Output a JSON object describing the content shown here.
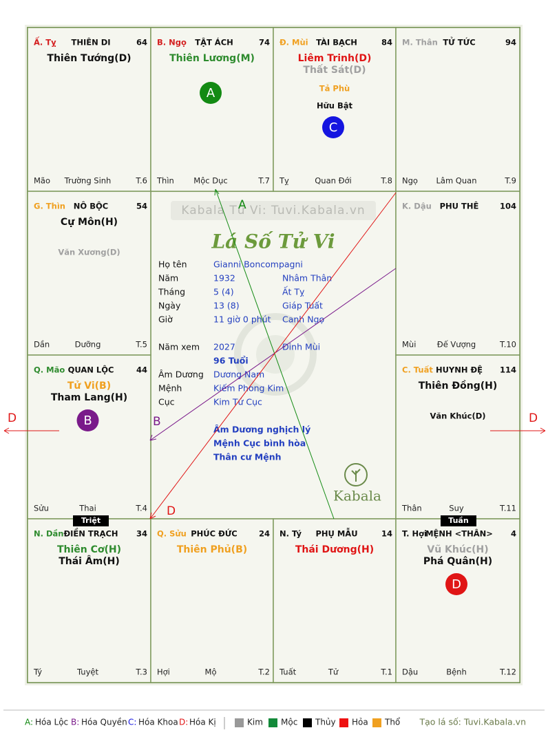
{
  "watermark": "Kabala Tử Vi: Tuvi.Kabala.vn",
  "title": "Lá Số Tử Vi",
  "logo": "Kabala",
  "cells": [
    {
      "label": "Ấ. Tỵ",
      "label_color": "#d42020",
      "name": "THIÊN DI",
      "number": 64,
      "stars": [
        {
          "text": "Thiên Tướng(D)",
          "color": "#111111"
        }
      ],
      "minor": [],
      "bottom": [
        "Mão",
        "Trường Sinh",
        "T.6"
      ]
    },
    {
      "label": "B. Ngọ",
      "label_color": "#d42020",
      "name": "TẬT ÁCH",
      "number": 74,
      "stars": [
        {
          "text": "Thiên Lương(M)",
          "color": "#2e8b2e"
        }
      ],
      "minor": [],
      "marker": {
        "text": "A",
        "color": "#138a13"
      },
      "bottom": [
        "Thìn",
        "Mộc Dục",
        "T.7"
      ]
    },
    {
      "label": "Đ. Mùi",
      "label_color": "#f0a020",
      "name": "TÀI BẠCH",
      "number": 84,
      "stars": [
        {
          "text": "Liêm Trinh(D)",
          "color": "#e01515"
        },
        {
          "text": "Thất Sát(D)",
          "color": "#a0a0a0"
        }
      ],
      "minor": [
        {
          "text": "Tả Phù",
          "color": "#f0a020"
        },
        {
          "text": "Hữu Bật",
          "color": "#111111"
        }
      ],
      "marker": {
        "text": "C",
        "color": "#1515e0"
      },
      "bottom": [
        "Tỵ",
        "Quan Đới",
        "T.8"
      ]
    },
    {
      "label": "M. Thân",
      "label_color": "#a0a0a0",
      "name": "TỬ TỨC",
      "number": 94,
      "stars": [],
      "minor": [],
      "bottom": [
        "Ngọ",
        "Lâm Quan",
        "T.9"
      ]
    },
    {
      "label": "G. Thìn",
      "label_color": "#f0a020",
      "name": "NÔ BỘC",
      "number": 54,
      "stars": [
        {
          "text": "Cự Môn(H)",
          "color": "#111111"
        }
      ],
      "minor": [
        {
          "text": "Văn Xương(D)",
          "color": "#a0a0a0"
        }
      ],
      "bottom": [
        "Dần",
        "Dưỡng",
        "T.5"
      ]
    },
    {
      "label": "K. Dậu",
      "label_color": "#a0a0a0",
      "name": "PHU THÊ",
      "number": 104,
      "stars": [],
      "minor": [],
      "bottom": [
        "Mùi",
        "Đế Vượng",
        "T.10"
      ]
    },
    {
      "label": "Q. Mão",
      "label_color": "#2e8b2e",
      "name": "QUAN LỘC",
      "number": 44,
      "stars": [
        {
          "text": "Tử Vi(B)",
          "color": "#f0a020"
        },
        {
          "text": "Tham Lang(H)",
          "color": "#111111"
        }
      ],
      "minor": [],
      "marker": {
        "text": "B",
        "color": "#7a1a8a"
      },
      "bottom": [
        "Sửu",
        "Thai",
        "T.4"
      ]
    },
    {
      "label": "C. Tuất",
      "label_color": "#f0a020",
      "name": "HUYNH ĐỆ",
      "number": 114,
      "stars": [
        {
          "text": "Thiên Đồng(H)",
          "color": "#111111"
        }
      ],
      "minor": [
        {
          "text": "Văn Khúc(D)",
          "color": "#111111"
        }
      ],
      "bottom": [
        "Thân",
        "Suy",
        "T.11"
      ]
    },
    {
      "label": "N. Dần",
      "label_color": "#2e8b2e",
      "name": "ĐIỀN TRẠCH",
      "number": 34,
      "stars": [
        {
          "text": "Thiên Cơ(H)",
          "color": "#2e8b2e"
        },
        {
          "text": "Thái Âm(H)",
          "color": "#111111"
        }
      ],
      "minor": [],
      "bottom": [
        "Tý",
        "Tuyệt",
        "T.3"
      ]
    },
    {
      "label": "Q. Sửu",
      "label_color": "#f0a020",
      "name": "PHÚC ĐỨC",
      "number": 24,
      "stars": [
        {
          "text": "Thiên Phủ(B)",
          "color": "#f0a020"
        }
      ],
      "minor": [],
      "bottom": [
        "Hợi",
        "Mộ",
        "T.2"
      ]
    },
    {
      "label": "N. Tý",
      "label_color": "#111111",
      "name": "PHỤ MẪU",
      "number": 14,
      "stars": [
        {
          "text": "Thái Dương(H)",
          "color": "#e01515"
        }
      ],
      "minor": [],
      "bottom": [
        "Tuất",
        "Tử",
        "T.1"
      ]
    },
    {
      "label": "T. Hợi",
      "label_color": "#111111",
      "name": "MỆNH <THÂN>",
      "number": 4,
      "stars": [
        {
          "text": "Vũ Khúc(H)",
          "color": "#a0a0a0"
        },
        {
          "text": "Phá Quân(H)",
          "color": "#111111"
        }
      ],
      "minor": [],
      "marker": {
        "text": "D",
        "color": "#e01515"
      },
      "bottom": [
        "Dậu",
        "Bệnh",
        "T.12"
      ]
    }
  ],
  "info": [
    {
      "label": "Họ tên",
      "value": "Gianni Boncompagni"
    },
    {
      "label": "Năm",
      "value": "1932",
      "extra": "Nhâm Thân"
    },
    {
      "label": "Tháng",
      "value": "5  (4)",
      "extra": "Ất Tỵ"
    },
    {
      "label": "Ngày",
      "value": "13  (8)",
      "extra": "Giáp Tuất"
    },
    {
      "label": "Giờ",
      "value": "11 giờ 0 phút",
      "extra": "Canh Ngọ"
    },
    {
      "label": "Năm xem",
      "value": "2027",
      "extra": "Đinh Mùi"
    },
    {
      "value": "96 Tuổi"
    },
    {
      "label": "Âm Dương",
      "value": "Dương Nam"
    },
    {
      "label": "Mệnh",
      "value": "Kiếm Phong Kim"
    },
    {
      "label": "Cục",
      "value": "Kim Tứ Cục"
    }
  ],
  "notes": [
    "Âm Dương nghịch lý",
    "Mệnh Cục bình hòa",
    "Thân cư Mệnh"
  ],
  "line_labels": {
    "a": "A",
    "b": "B",
    "d": "D",
    "d_left": "D",
    "d_right": "D"
  },
  "triet": "Triệt",
  "tuan": "Tuần",
  "legend": [
    {
      "key": "A:",
      "text": "Hóa Lộc",
      "color": "#138a13"
    },
    {
      "key": "B:",
      "text": "Hóa Quyền",
      "color": "#7a1a8a"
    },
    {
      "key": "C:",
      "text": "Hóa Khoa",
      "color": "#1515e0"
    },
    {
      "key": "D:",
      "text": "Hóa Kị",
      "color": "#e01515"
    }
  ],
  "elements": [
    {
      "text": "Kim",
      "color": "#999999"
    },
    {
      "text": "Mộc",
      "color": "#138a3a"
    },
    {
      "text": "Thủy",
      "color": "#000000"
    },
    {
      "text": "Hỏa",
      "color": "#ee1111"
    },
    {
      "text": "Thổ",
      "color": "#f0a020"
    }
  ],
  "credit": "Tạo lá số: Tuvi.Kabala.vn"
}
